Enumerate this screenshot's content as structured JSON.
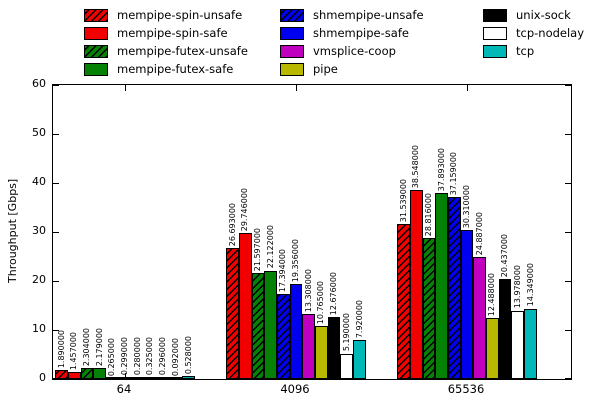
{
  "chart_data": {
    "type": "bar",
    "title": "",
    "xlabel": "",
    "ylabel": "Throughput [Gbps]",
    "ylim": [
      0,
      60
    ],
    "yticks": [
      0,
      10,
      20,
      30,
      40,
      50,
      60
    ],
    "grid": false,
    "legend_position": "top-outside-3-columns",
    "value_label_format": "6-decimals-rotated-90",
    "categories": [
      "64",
      "4096",
      "65536"
    ],
    "series": [
      {
        "name": "mempipe-spin-unsafe",
        "color": "#f20000",
        "hatch": true,
        "values": [
          1.89,
          26.693,
          31.539
        ]
      },
      {
        "name": "mempipe-spin-safe",
        "color": "#f20000",
        "hatch": false,
        "values": [
          1.457,
          29.746,
          38.548
        ]
      },
      {
        "name": "mempipe-futex-unsafe",
        "color": "#058205",
        "hatch": true,
        "values": [
          2.304,
          21.597,
          28.816
        ]
      },
      {
        "name": "mempipe-futex-safe",
        "color": "#058205",
        "hatch": false,
        "values": [
          2.179,
          22.122,
          37.893
        ]
      },
      {
        "name": "shmempipe-unsafe",
        "color": "#0000f0",
        "hatch": true,
        "values": [
          0.265,
          17.394,
          37.159
        ]
      },
      {
        "name": "shmempipe-safe",
        "color": "#0000f0",
        "hatch": false,
        "values": [
          0.299,
          19.356,
          30.31
        ]
      },
      {
        "name": "vmsplice-coop",
        "color": "#bf00bf",
        "hatch": false,
        "values": [
          0.28,
          13.308,
          24.887
        ]
      },
      {
        "name": "pipe",
        "color": "#b8b800",
        "hatch": false,
        "values": [
          0.325,
          10.765,
          12.488
        ]
      },
      {
        "name": "unix-sock",
        "color": "#000000",
        "hatch": false,
        "values": [
          0.296,
          12.676,
          20.437
        ]
      },
      {
        "name": "tcp-nodelay",
        "color": "#ffffff",
        "hatch": false,
        "values": [
          0.092,
          5.19,
          13.978
        ]
      },
      {
        "name": "tcp",
        "color": "#00b8b8",
        "hatch": false,
        "values": [
          0.528,
          7.92,
          14.349
        ]
      }
    ]
  },
  "legend": {
    "columns": [
      [
        "mempipe-spin-unsafe",
        "mempipe-spin-safe",
        "mempipe-futex-unsafe",
        "mempipe-futex-safe"
      ],
      [
        "shmempipe-unsafe",
        "shmempipe-safe",
        "vmsplice-coop",
        "pipe"
      ],
      [
        "unix-sock",
        "tcp-nodelay",
        "tcp"
      ]
    ]
  }
}
